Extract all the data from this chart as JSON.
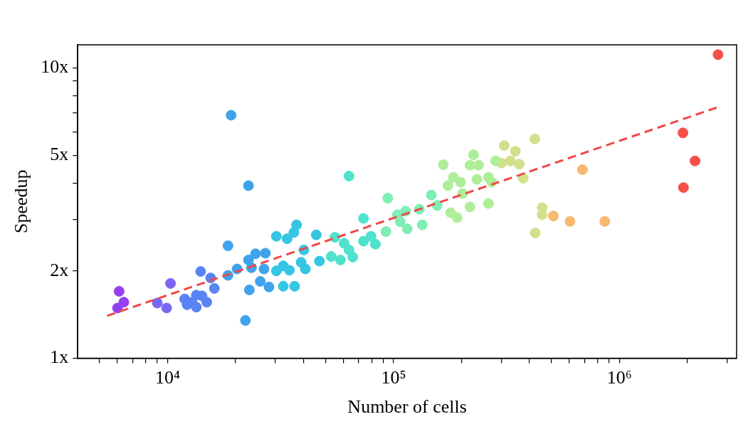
{
  "chart_data": {
    "type": "scatter",
    "xlabel": "Number of cells",
    "ylabel": "Speedup",
    "log": "xy",
    "grid": false,
    "marker": "circle",
    "xlim": [
      4000,
      3300000
    ],
    "ylim": [
      1,
      12
    ],
    "xticks": [
      {
        "value": 5000,
        "label": null
      },
      {
        "value": 6000,
        "label": null
      },
      {
        "value": 7000,
        "label": null
      },
      {
        "value": 8000,
        "label": null
      },
      {
        "value": 9000,
        "label": null
      },
      {
        "value": 10000,
        "label": "10⁴"
      },
      {
        "value": 20000,
        "label": null
      },
      {
        "value": 30000,
        "label": null
      },
      {
        "value": 40000,
        "label": null
      },
      {
        "value": 50000,
        "label": null
      },
      {
        "value": 60000,
        "label": null
      },
      {
        "value": 70000,
        "label": null
      },
      {
        "value": 80000,
        "label": null
      },
      {
        "value": 90000,
        "label": null
      },
      {
        "value": 100000,
        "label": "10⁵"
      },
      {
        "value": 200000,
        "label": null
      },
      {
        "value": 300000,
        "label": null
      },
      {
        "value": 400000,
        "label": null
      },
      {
        "value": 500000,
        "label": null
      },
      {
        "value": 600000,
        "label": null
      },
      {
        "value": 700000,
        "label": null
      },
      {
        "value": 800000,
        "label": null
      },
      {
        "value": 900000,
        "label": null
      },
      {
        "value": 1000000,
        "label": "10⁶"
      },
      {
        "value": 2000000,
        "label": null
      },
      {
        "value": 3000000,
        "label": null
      }
    ],
    "yticks": [
      {
        "value": 1,
        "label": "1x"
      },
      {
        "value": 2,
        "label": "2x"
      },
      {
        "value": 3,
        "label": null
      },
      {
        "value": 4,
        "label": null
      },
      {
        "value": 5,
        "label": "5x"
      },
      {
        "value": 6,
        "label": null
      },
      {
        "value": 7,
        "label": null
      },
      {
        "value": 8,
        "label": null
      },
      {
        "value": 9,
        "label": null
      },
      {
        "value": 10,
        "label": "10x"
      }
    ],
    "series": [
      {
        "color": "#9440f0",
        "x": [
          6100,
          6400,
          6000
        ],
        "values": [
          1.7,
          1.56,
          1.49
        ]
      },
      {
        "color": "#7866f2",
        "x": [
          9000,
          9900,
          10300
        ],
        "values": [
          1.55,
          1.49,
          1.81
        ]
      },
      {
        "color": "#5a84f4",
        "x": [
          11900,
          12200,
          13400,
          13400,
          14200,
          14900,
          12800,
          14000,
          15500,
          16100
        ],
        "values": [
          1.6,
          1.53,
          1.65,
          1.5,
          1.64,
          1.56,
          1.56,
          1.99,
          1.89,
          1.74
        ]
      },
      {
        "color": "#3fa2ec",
        "x": [
          19100,
          22800,
          18500,
          18500,
          20300,
          22800,
          24500,
          27100,
          23000,
          22100,
          23500,
          25700,
          28100,
          26700
        ],
        "values": [
          6.87,
          3.93,
          2.44,
          1.93,
          2.03,
          2.18,
          2.29,
          2.3,
          1.72,
          1.35,
          2.05,
          1.84,
          1.76,
          2.03
        ]
      },
      {
        "color": "#34c6e2",
        "x": [
          30300,
          33800,
          36200,
          37200,
          30300,
          32500,
          34600,
          32500,
          36500,
          45500,
          39000,
          40700,
          47000,
          40100
        ],
        "values": [
          2.63,
          2.58,
          2.71,
          2.88,
          2.0,
          2.08,
          2.01,
          1.77,
          1.77,
          2.66,
          2.14,
          2.03,
          2.16,
          2.36
        ]
      },
      {
        "color": "#4fe2cc",
        "x": [
          63500,
          55000,
          53000,
          60400,
          63500,
          66000,
          58200,
          73600,
          73600,
          79500,
          83100
        ],
        "values": [
          4.24,
          2.61,
          2.24,
          2.49,
          2.36,
          2.23,
          2.18,
          3.03,
          2.53,
          2.63,
          2.47
        ]
      },
      {
        "color": "#7eeeb4",
        "x": [
          94300,
          92600,
          104000,
          113000,
          107000,
          115000,
          134000,
          130000,
          147000,
          156000
        ],
        "values": [
          3.56,
          2.73,
          3.12,
          3.21,
          2.95,
          2.79,
          2.88,
          3.26,
          3.65,
          3.36
        ]
      },
      {
        "color": "#aeee98",
        "x": [
          166000,
          179000,
          191000,
          184000,
          174000,
          198000,
          202000,
          218000,
          226000,
          218000,
          238000,
          234000,
          263000,
          272000,
          263000,
          283000
        ],
        "values": [
          4.64,
          3.17,
          3.05,
          4.2,
          3.93,
          4.04,
          3.69,
          3.32,
          5.02,
          4.62,
          4.62,
          4.13,
          4.2,
          4.04,
          3.41,
          4.78
        ]
      },
      {
        "color": "#d2e08c",
        "x": [
          309000,
          329000,
          346000,
          300000,
          422000,
          360000,
          375000,
          455000,
          455000,
          424000
        ],
        "values": [
          5.4,
          4.78,
          5.16,
          4.7,
          5.69,
          4.66,
          4.17,
          3.3,
          3.12,
          2.7
        ]
      },
      {
        "color": "#f7b870",
        "x": [
          510000,
          604000,
          686000,
          861000
        ],
        "values": [
          3.09,
          2.96,
          4.46,
          2.96
        ]
      },
      {
        "color": "#f55048",
        "x": [
          1910000,
          2160000,
          1920000,
          2730000
        ],
        "values": [
          5.97,
          4.78,
          3.87,
          11.1
        ]
      },
      {
        "type": "line",
        "color": "#f04848",
        "line_style": "dashed",
        "marker": "none",
        "x": [
          5400,
          2700000
        ],
        "values": [
          1.4,
          7.3
        ]
      }
    ]
  }
}
